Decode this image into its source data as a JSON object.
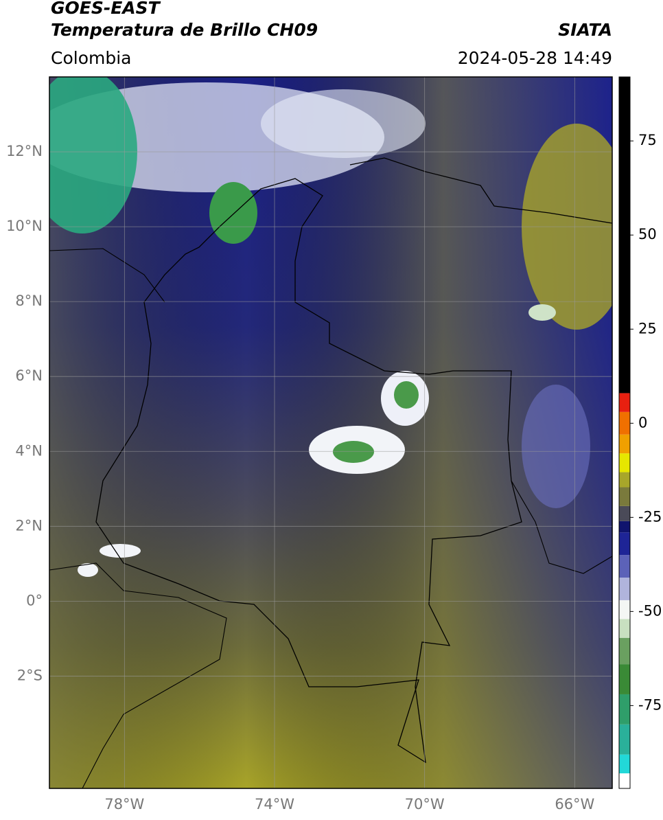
{
  "header": {
    "title": "GOES-EAST",
    "subtitle": "Temperatura de Brillo CH09",
    "source": "SIATA",
    "region": "Colombia",
    "datetime": "2024-05-28 14:49"
  },
  "map": {
    "xlim": [
      -80,
      -65
    ],
    "ylim": [
      -5,
      14
    ],
    "xticks": [
      {
        "value": -78,
        "label": "78°W"
      },
      {
        "value": -74,
        "label": "74°W"
      },
      {
        "value": -70,
        "label": "70°W"
      },
      {
        "value": -66,
        "label": "66°W"
      }
    ],
    "yticks": [
      {
        "value": 12,
        "label": "12°N"
      },
      {
        "value": 10,
        "label": "10°N"
      },
      {
        "value": 8,
        "label": "8°N"
      },
      {
        "value": 6,
        "label": "6°N"
      },
      {
        "value": 4,
        "label": "4°N"
      },
      {
        "value": 2,
        "label": "2°N"
      },
      {
        "value": 0,
        "label": "0°"
      },
      {
        "value": -2,
        "label": "2°S"
      }
    ],
    "grid": true
  },
  "colorbar": {
    "lim": [
      -97,
      92
    ],
    "ticks": [
      75,
      50,
      25,
      0,
      -25,
      -50,
      -75
    ],
    "bands": [
      {
        "from": -97,
        "to": -93,
        "color": "#ffffff"
      },
      {
        "from": -93,
        "to": -88,
        "color": "#22d8d8"
      },
      {
        "from": -88,
        "to": -80,
        "color": "#2ab09a"
      },
      {
        "from": -80,
        "to": -72,
        "color": "#2f9e6a"
      },
      {
        "from": -72,
        "to": -64,
        "color": "#3a8a36"
      },
      {
        "from": -64,
        "to": -57,
        "color": "#6aa060"
      },
      {
        "from": -57,
        "to": -52,
        "color": "#c8e0c0"
      },
      {
        "from": -52,
        "to": -47,
        "color": "#f4f6f4"
      },
      {
        "from": -47,
        "to": -41,
        "color": "#b0b4dc"
      },
      {
        "from": -41,
        "to": -35,
        "color": "#5c62b8"
      },
      {
        "from": -35,
        "to": -29,
        "color": "#1e2496"
      },
      {
        "from": -29,
        "to": -26,
        "color": "#10146e"
      },
      {
        "from": -26,
        "to": -22,
        "color": "#4a4a58"
      },
      {
        "from": -22,
        "to": -17,
        "color": "#7a7a3c"
      },
      {
        "from": -17,
        "to": -13,
        "color": "#a8a62a"
      },
      {
        "from": -13,
        "to": -8,
        "color": "#e6e600"
      },
      {
        "from": -8,
        "to": -3,
        "color": "#f0a000"
      },
      {
        "from": -3,
        "to": 3,
        "color": "#f07000"
      },
      {
        "from": 3,
        "to": 8,
        "color": "#e82010"
      },
      {
        "from": 8,
        "to": 92,
        "color": "#000000"
      }
    ]
  }
}
